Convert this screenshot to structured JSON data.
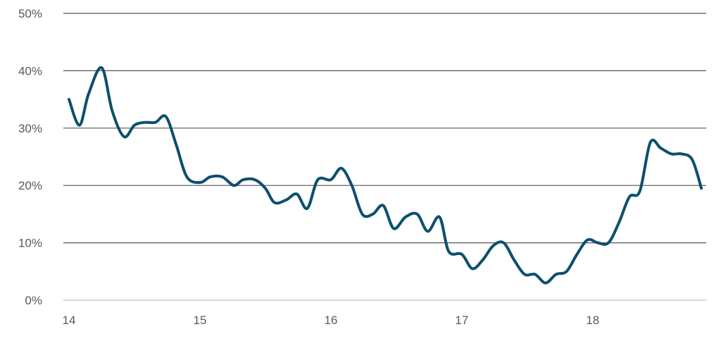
{
  "chart_data": {
    "type": "line",
    "title": "",
    "xlabel": "",
    "ylabel": "",
    "xlim": [
      14,
      18.85
    ],
    "ylim": [
      0,
      50
    ],
    "x_ticks": [
      {
        "value": 14,
        "label": "14"
      },
      {
        "value": 15,
        "label": "15"
      },
      {
        "value": 16,
        "label": "16"
      },
      {
        "value": 17,
        "label": "17"
      },
      {
        "value": 18,
        "label": "18"
      }
    ],
    "y_ticks": [
      {
        "value": 0,
        "label": "0%"
      },
      {
        "value": 10,
        "label": "10%"
      },
      {
        "value": 20,
        "label": "20%"
      },
      {
        "value": 30,
        "label": "30%"
      },
      {
        "value": 40,
        "label": "40%"
      },
      {
        "value": 50,
        "label": "50%"
      }
    ],
    "grid": "horizontal",
    "colors": {
      "line": "#0d4f6e",
      "grid": "#555555",
      "zero_line": "#b9d2e2",
      "tick_text": "#555a5e"
    },
    "series": [
      {
        "x": [
          14.0,
          14.08,
          14.15,
          14.25,
          14.33,
          14.42,
          14.5,
          14.58,
          14.66,
          14.74,
          14.82,
          14.9,
          15.0,
          15.08,
          15.17,
          15.26,
          15.33,
          15.42,
          15.5,
          15.57,
          15.66,
          15.74,
          15.82,
          15.9,
          16.0,
          16.08,
          16.16,
          16.24,
          16.32,
          16.4,
          16.48,
          16.57,
          16.66,
          16.74,
          16.83,
          16.9,
          17.0,
          17.08,
          17.16,
          17.24,
          17.32,
          17.4,
          17.48,
          17.56,
          17.64,
          17.72,
          17.8,
          17.88,
          17.96,
          18.04,
          18.12,
          18.2,
          18.28,
          18.36,
          18.44,
          18.52,
          18.6,
          18.68,
          18.76,
          18.83
        ],
        "values": [
          35,
          30.5,
          36,
          40.5,
          33,
          28.5,
          30.5,
          31,
          31,
          32,
          27,
          21.5,
          20.5,
          21.5,
          21.5,
          20,
          21,
          21,
          19.5,
          17,
          17.5,
          18.5,
          16,
          21,
          21,
          23,
          20,
          15,
          15,
          16.5,
          12.5,
          14.5,
          15,
          12,
          14.5,
          8.5,
          8,
          5.5,
          7,
          9.5,
          10,
          7,
          4.5,
          4.5,
          3,
          4.5,
          5,
          8,
          10.5,
          10,
          10,
          13.5,
          18,
          19,
          27.5,
          26.5,
          25.5,
          25.5,
          24.5,
          19.5
        ]
      }
    ]
  }
}
